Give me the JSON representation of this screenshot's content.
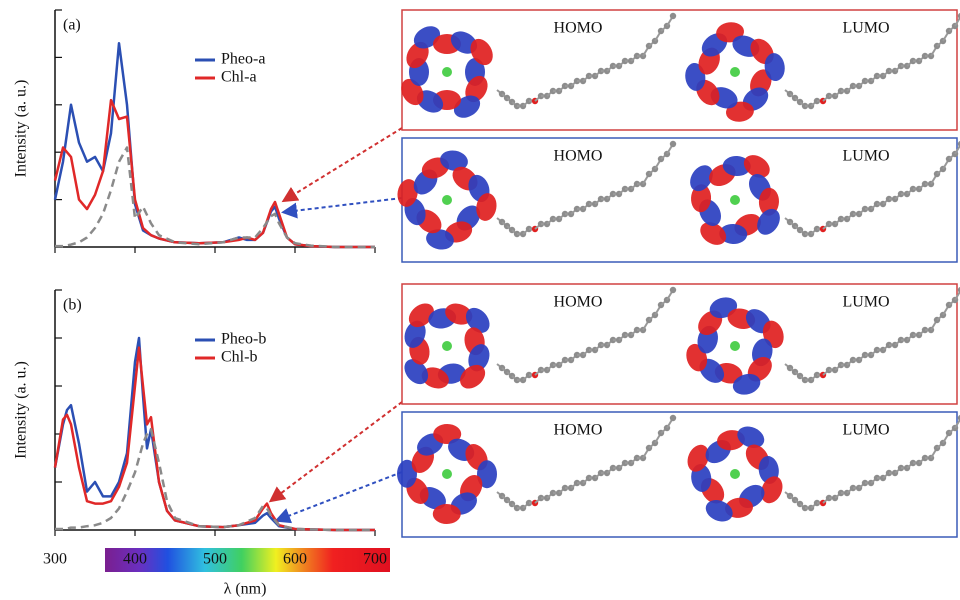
{
  "chart_data": [
    {
      "type": "line",
      "annotation": "(a)",
      "ylabel": "Intensity (a. u.)",
      "x": [
        300,
        310,
        320,
        330,
        340,
        350,
        360,
        370,
        380,
        390,
        400,
        410,
        420,
        430,
        450,
        480,
        510,
        530,
        540,
        550,
        560,
        570,
        575,
        580,
        590,
        600,
        620,
        650,
        700
      ],
      "series": [
        {
          "name": "Pheo-a",
          "color": "#2b4fb3",
          "values": [
            1.0,
            1.8,
            3.0,
            2.2,
            1.8,
            1.9,
            1.6,
            2.4,
            4.3,
            3.0,
            0.9,
            0.35,
            0.25,
            0.18,
            0.1,
            0.08,
            0.1,
            0.2,
            0.15,
            0.15,
            0.3,
            0.75,
            0.85,
            0.6,
            0.2,
            0.06,
            0.02,
            0,
            0
          ]
        },
        {
          "name": "Chl-a",
          "color": "#e02828",
          "values": [
            1.4,
            2.1,
            1.9,
            1.0,
            0.8,
            1.1,
            1.6,
            3.1,
            2.7,
            2.75,
            1.0,
            0.4,
            0.25,
            0.18,
            0.1,
            0.08,
            0.1,
            0.15,
            0.2,
            0.15,
            0.3,
            0.8,
            0.95,
            0.7,
            0.2,
            0.06,
            0.02,
            0,
            0
          ]
        },
        {
          "color": "#8a8a8a",
          "dashed": true,
          "values": [
            0.02,
            0.02,
            0.05,
            0.1,
            0.2,
            0.4,
            0.7,
            1.2,
            1.8,
            2.1,
            0.6,
            0.85,
            0.5,
            0.25,
            0.1,
            0.06,
            0.1,
            0.2,
            0.2,
            0.2,
            0.4,
            0.65,
            0.7,
            0.5,
            0.2,
            0.08,
            0.03,
            0,
            0
          ]
        }
      ],
      "xlim": [
        300,
        700
      ],
      "ylim": [
        0,
        5
      ],
      "xticks": [
        300,
        400,
        500,
        600,
        700
      ],
      "yticks": [
        0,
        1,
        2,
        3,
        4,
        5
      ],
      "xtick_labels": false,
      "legend": "upper center"
    },
    {
      "type": "line",
      "annotation": "(b)",
      "ylabel": "Intensity (a. u.)",
      "xlabel": "λ (nm)",
      "x": [
        300,
        310,
        315,
        320,
        330,
        340,
        350,
        360,
        370,
        380,
        390,
        400,
        405,
        410,
        415,
        420,
        430,
        440,
        450,
        480,
        510,
        530,
        550,
        560,
        565,
        570,
        580,
        600,
        650,
        700
      ],
      "series": [
        {
          "name": "Pheo-b",
          "color": "#2b4fb3",
          "values": [
            1.3,
            2.2,
            2.5,
            2.6,
            1.8,
            0.8,
            1.0,
            0.7,
            0.7,
            1.0,
            1.6,
            3.5,
            4.0,
            2.8,
            1.7,
            2.1,
            1.0,
            0.4,
            0.2,
            0.08,
            0.06,
            0.1,
            0.15,
            0.3,
            0.35,
            0.25,
            0.08,
            0.02,
            0,
            0
          ]
        },
        {
          "name": "Chl-b",
          "color": "#e02828",
          "values": [
            1.3,
            2.3,
            2.4,
            2.2,
            1.3,
            0.6,
            0.55,
            0.55,
            0.6,
            0.9,
            1.4,
            3.0,
            3.8,
            3.0,
            2.2,
            2.35,
            1.0,
            0.4,
            0.2,
            0.08,
            0.06,
            0.1,
            0.2,
            0.45,
            0.55,
            0.35,
            0.1,
            0.02,
            0,
            0
          ]
        },
        {
          "color": "#8a8a8a",
          "dashed": true,
          "values": [
            0.02,
            0.02,
            0.03,
            0.05,
            0.05,
            0.08,
            0.1,
            0.15,
            0.25,
            0.45,
            0.8,
            1.2,
            1.5,
            1.8,
            2.0,
            2.1,
            1.4,
            0.6,
            0.25,
            0.08,
            0.06,
            0.1,
            0.25,
            0.5,
            0.45,
            0.3,
            0.1,
            0.02,
            0,
            0
          ]
        }
      ],
      "xlim": [
        300,
        700
      ],
      "ylim": [
        0,
        5
      ],
      "xticks": [
        300,
        400,
        500,
        600,
        700
      ],
      "yticks": [
        0,
        1,
        2,
        3,
        4,
        5
      ],
      "xtick_labels": true,
      "legend": "upper center"
    }
  ],
  "orbital_panels": [
    {
      "color": "#d04040",
      "labels": [
        "HOMO",
        "LUMO"
      ]
    },
    {
      "color": "#3a5bb8",
      "labels": [
        "HOMO",
        "LUMO"
      ]
    },
    {
      "color": "#d04040",
      "labels": [
        "HOMO",
        "LUMO"
      ]
    },
    {
      "color": "#3a5bb8",
      "labels": [
        "HOMO",
        "LUMO"
      ]
    }
  ]
}
